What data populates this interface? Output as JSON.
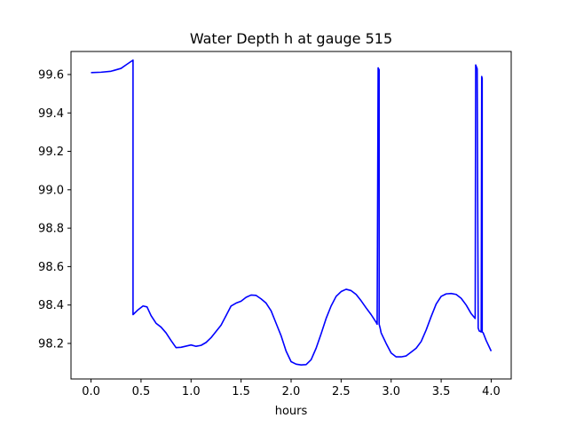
{
  "chart_data": {
    "type": "line",
    "title": "Water Depth h at gauge 515",
    "xlabel": "hours",
    "ylabel": "",
    "xlim": [
      -0.2,
      4.2
    ],
    "ylim": [
      98.015,
      99.72
    ],
    "grid": false,
    "legend": "none",
    "line_color": "#0000ff",
    "xticks": [
      0.0,
      0.5,
      1.0,
      1.5,
      2.0,
      2.5,
      3.0,
      3.5,
      4.0
    ],
    "xtick_labels": [
      "0.0",
      "0.5",
      "1.0",
      "1.5",
      "2.0",
      "2.5",
      "3.0",
      "3.5",
      "4.0"
    ],
    "yticks": [
      98.2,
      98.4,
      98.6,
      98.8,
      99.0,
      99.2,
      99.4,
      99.6
    ],
    "ytick_labels": [
      "98.2",
      "98.4",
      "98.6",
      "98.8",
      "99.0",
      "99.2",
      "99.4",
      "99.6"
    ],
    "series": [
      {
        "x": [
          0.0,
          0.1,
          0.2,
          0.3,
          0.35,
          0.42,
          0.42,
          0.47,
          0.52,
          0.56,
          0.6,
          0.65,
          0.7,
          0.75,
          0.8,
          0.85,
          0.9,
          1.0,
          1.05,
          1.1,
          1.15,
          1.2,
          1.3,
          1.35,
          1.4,
          1.45,
          1.5,
          1.55,
          1.6,
          1.65,
          1.7,
          1.75,
          1.8,
          1.85,
          1.9,
          1.95,
          2.0,
          2.05,
          2.1,
          2.15,
          2.2,
          2.25,
          2.3,
          2.35,
          2.4,
          2.45,
          2.5,
          2.55,
          2.6,
          2.65,
          2.7,
          2.75,
          2.8,
          2.85,
          2.86,
          2.87,
          2.88,
          2.88,
          2.89,
          2.9,
          2.95,
          3.0,
          3.05,
          3.1,
          3.15,
          3.2,
          3.25,
          3.3,
          3.35,
          3.4,
          3.45,
          3.5,
          3.55,
          3.6,
          3.65,
          3.7,
          3.75,
          3.8,
          3.84,
          3.845,
          3.86,
          3.87,
          3.87,
          3.88,
          3.9,
          3.905,
          3.91,
          3.91,
          3.92,
          3.95,
          4.0
        ],
        "y": [
          99.61,
          99.612,
          99.617,
          99.632,
          99.65,
          99.675,
          98.35,
          98.375,
          98.395,
          98.39,
          98.345,
          98.305,
          98.285,
          98.255,
          98.215,
          98.178,
          98.18,
          98.192,
          98.185,
          98.19,
          98.205,
          98.23,
          98.295,
          98.345,
          98.395,
          98.41,
          98.42,
          98.44,
          98.452,
          98.45,
          98.432,
          98.41,
          98.37,
          98.305,
          98.24,
          98.16,
          98.105,
          98.092,
          98.088,
          98.09,
          98.115,
          98.175,
          98.25,
          98.33,
          98.395,
          98.445,
          98.47,
          98.482,
          98.475,
          98.455,
          98.422,
          98.385,
          98.35,
          98.31,
          98.3,
          99.635,
          99.625,
          98.3,
          98.28,
          98.255,
          98.2,
          98.15,
          98.13,
          98.13,
          98.135,
          98.155,
          98.175,
          98.21,
          98.27,
          98.34,
          98.405,
          98.445,
          98.458,
          98.46,
          98.455,
          98.435,
          98.4,
          98.355,
          98.33,
          99.65,
          99.63,
          98.3,
          98.28,
          98.265,
          98.26,
          99.59,
          99.58,
          98.26,
          98.255,
          98.215,
          98.16
        ]
      }
    ]
  }
}
